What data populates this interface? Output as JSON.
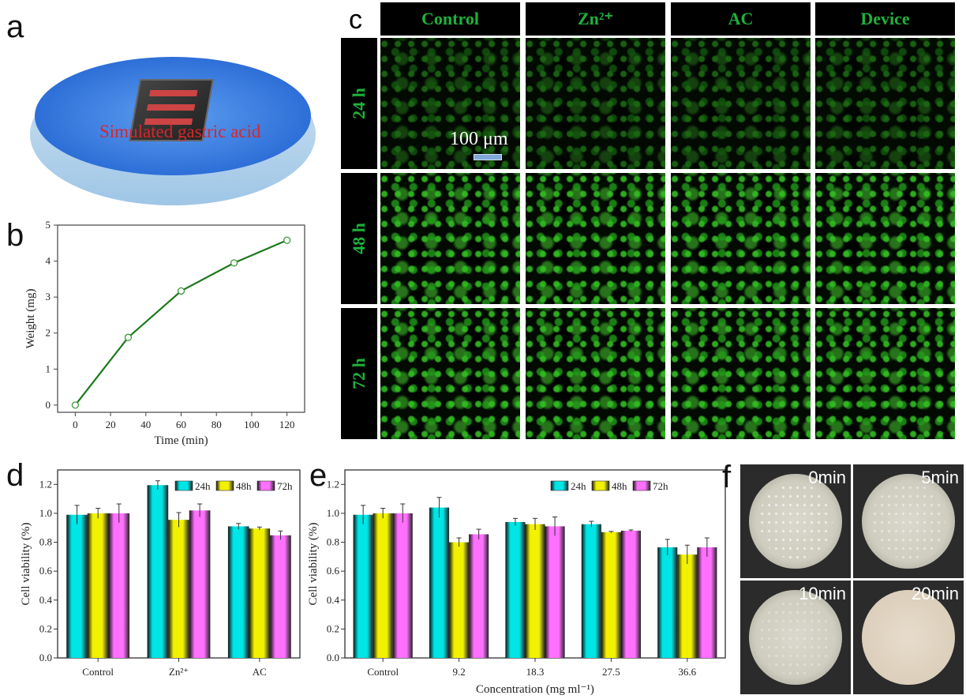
{
  "panels": {
    "a": "a",
    "b": "b",
    "c": "c",
    "d": "d",
    "e": "e",
    "f": "f"
  },
  "panel_a": {
    "caption": "Simulated gastric acid",
    "colors": {
      "liquid": "#3a7fe0",
      "caption": "#d8262a"
    }
  },
  "panel_c": {
    "columns": [
      "Control",
      "Zn²⁺",
      "AC",
      "Device"
    ],
    "rows": [
      "24 h",
      "48 h",
      "72 h"
    ],
    "scale_bar": "100 μm",
    "colors": {
      "label": "#1db23a",
      "cells": "#3cdc28"
    }
  },
  "panel_f": {
    "plates": [
      "0min",
      "5min",
      "10min",
      "20min"
    ]
  },
  "chart_data": [
    {
      "panel": "b",
      "type": "line",
      "xlabel": "Time (min)",
      "ylabel": "Weight (mg)",
      "x": [
        0,
        30,
        60,
        90,
        120
      ],
      "y": [
        0,
        1.88,
        3.17,
        3.95,
        4.58
      ],
      "xlim": [
        -10,
        130
      ],
      "ylim": [
        -0.2,
        5
      ],
      "xticks": [
        0,
        20,
        40,
        60,
        80,
        100,
        120
      ],
      "yticks": [
        0,
        1,
        2,
        3,
        4,
        5
      ],
      "color": "#1a7a1a",
      "marker": "open-circle",
      "grid": false
    },
    {
      "panel": "d",
      "type": "bar",
      "xlabel": "",
      "ylabel": "Cell viability (%)",
      "categories": [
        "Control",
        "Zn²⁺",
        "AC"
      ],
      "ylim": [
        0,
        1.3
      ],
      "yticks": [
        "0.0",
        "0.2",
        "0.4",
        "0.6",
        "0.8",
        "1.0",
        "1.2"
      ],
      "legend": "top-right",
      "series": [
        {
          "name": "24h",
          "color": "#00e5e5",
          "values": [
            0.99,
            1.195,
            0.91
          ],
          "errors": [
            0.065,
            0.03,
            0.02
          ]
        },
        {
          "name": "48h",
          "color": "#f2f200",
          "values": [
            1.0,
            0.955,
            0.895
          ],
          "errors": [
            0.035,
            0.05,
            0.01
          ]
        },
        {
          "name": "72h",
          "color": "#ff70ff",
          "values": [
            1.0,
            1.02,
            0.848
          ],
          "errors": [
            0.065,
            0.045,
            0.03
          ]
        }
      ]
    },
    {
      "panel": "e",
      "type": "bar",
      "xlabel": "Concentration (mg ml⁻¹)",
      "ylabel": "Cell viability (%)",
      "categories": [
        "Control",
        "9.2",
        "18.3",
        "27.5",
        "36.6"
      ],
      "ylim": [
        0,
        1.3
      ],
      "yticks": [
        "0.0",
        "0.2",
        "0.4",
        "0.6",
        "0.8",
        "1.0",
        "1.2"
      ],
      "legend": "top-right",
      "series": [
        {
          "name": "24h",
          "color": "#00e5e5",
          "values": [
            0.99,
            1.04,
            0.94,
            0.925,
            0.765
          ],
          "errors": [
            0.065,
            0.07,
            0.025,
            0.02,
            0.055
          ]
        },
        {
          "name": "48h",
          "color": "#f2f200",
          "values": [
            1.0,
            0.8,
            0.925,
            0.87,
            0.715
          ],
          "errors": [
            0.035,
            0.03,
            0.04,
            0.005,
            0.065
          ]
        },
        {
          "name": "72h",
          "color": "#ff70ff",
          "values": [
            1.0,
            0.855,
            0.91,
            0.88,
            0.765
          ],
          "errors": [
            0.065,
            0.035,
            0.065,
            0.005,
            0.065
          ]
        }
      ]
    }
  ]
}
